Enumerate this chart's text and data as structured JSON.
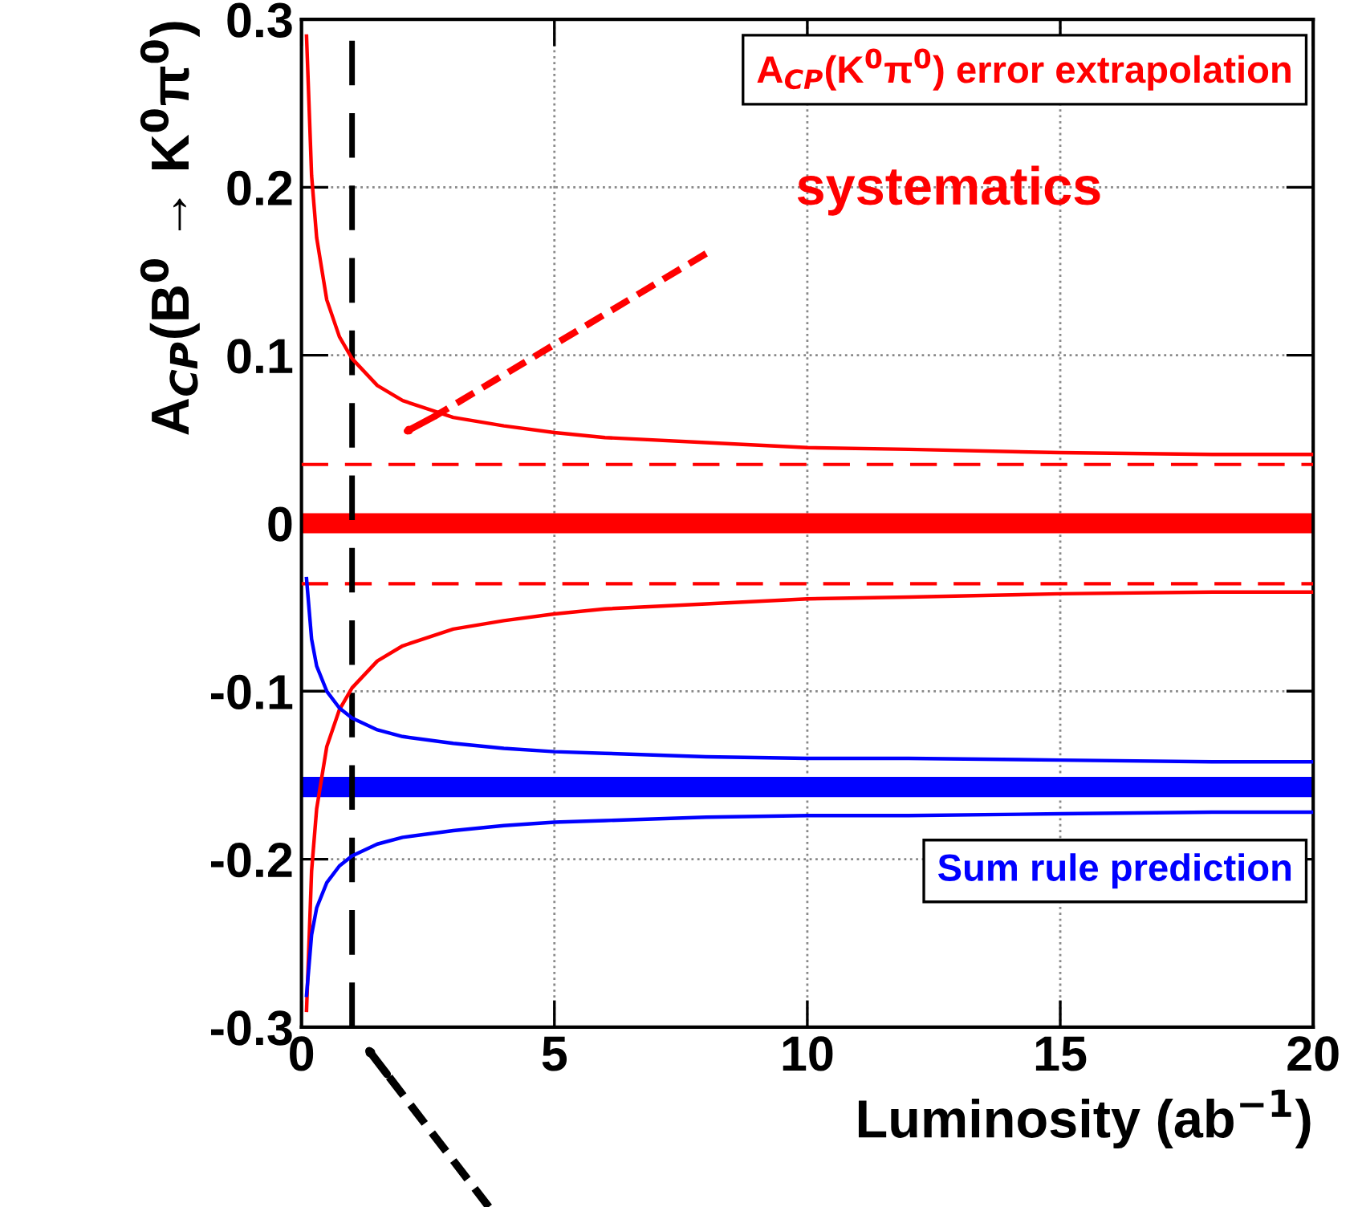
{
  "chart_data": {
    "type": "line",
    "xlabel": "Luminosity (ab$^{−1}$)",
    "ylabel": "A$_{CP}$(B$^{0}$ → K$^{0}$π$^{0}$)",
    "xlim": [
      0,
      20
    ],
    "xticks": [
      0,
      5,
      10,
      15,
      20
    ],
    "ylim": [
      -0.3,
      0.3
    ],
    "yticks": [
      -0.3,
      -0.2,
      -0.1,
      0,
      0.1,
      0.2,
      0.3
    ],
    "grid": true,
    "marker": "none",
    "line_style": "solid",
    "x": [
      0.1,
      0.2,
      0.3,
      0.5,
      0.75,
      1,
      1.5,
      2,
      3,
      4,
      5,
      6,
      8,
      10,
      12,
      15,
      18,
      20
    ],
    "series": [
      {
        "name": "A$_{CP}$(K$^{0}$π$^{0}$) error extrapolation",
        "color": "#ff0000",
        "values": [
          0.29,
          0.207,
          0.17,
          0.133,
          0.111,
          0.098,
          0.082,
          0.073,
          0.063,
          0.058,
          0.054,
          0.051,
          0.048,
          0.045,
          0.044,
          0.042,
          0.041,
          0.041
        ]
      },
      {
        "color": "#ff0000",
        "values": [
          -0.29,
          -0.207,
          -0.17,
          -0.133,
          -0.111,
          -0.098,
          -0.082,
          -0.073,
          -0.063,
          -0.058,
          -0.054,
          -0.051,
          -0.048,
          -0.045,
          -0.044,
          -0.042,
          -0.041,
          -0.041
        ]
      },
      {
        "name": "Sum rule prediction",
        "color": "#0000ff",
        "values": [
          -0.033,
          -0.069,
          -0.085,
          -0.1,
          -0.11,
          -0.116,
          -0.123,
          -0.127,
          -0.131,
          -0.134,
          -0.136,
          -0.137,
          -0.139,
          -0.14,
          -0.14,
          -0.141,
          -0.142,
          -0.142
        ]
      },
      {
        "color": "#0000ff",
        "values": [
          -0.281,
          -0.245,
          -0.229,
          -0.214,
          -0.204,
          -0.198,
          -0.191,
          -0.187,
          -0.183,
          -0.18,
          -0.178,
          -0.177,
          -0.175,
          -0.174,
          -0.174,
          -0.173,
          -0.172,
          -0.172
        ]
      }
    ],
    "bands": [
      {
        "axis": "y",
        "from": -0.006,
        "to": 0.006,
        "color": "#ff0000"
      },
      {
        "axis": "y",
        "from": -0.163,
        "to": -0.151,
        "color": "#0000ff"
      }
    ],
    "ref_lines": [
      {
        "axis": "y",
        "value": 0.035,
        "color": "#ff0000",
        "line_style": "dashed"
      },
      {
        "axis": "y",
        "value": -0.036,
        "color": "#ff0000",
        "line_style": "dashed"
      },
      {
        "axis": "x",
        "value": 1,
        "color": "#000000",
        "line_style": "dashed"
      }
    ],
    "annotations": [
      "systematics"
    ]
  }
}
